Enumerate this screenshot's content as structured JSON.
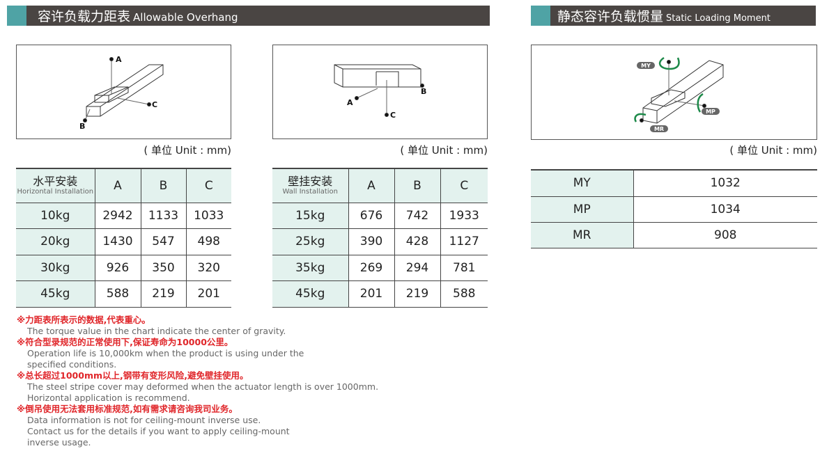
{
  "overhang": {
    "title_zh": "容许负载力距表",
    "title_en": "Allowable Overhang",
    "unit": "( 单位 Unit : mm)",
    "horizontal": {
      "header_zh": "水平安装",
      "header_en": "Horizontal Installation",
      "columns": [
        "A",
        "B",
        "C"
      ],
      "rows": [
        {
          "load": "10kg",
          "values": [
            "2942",
            "1133",
            "1033"
          ]
        },
        {
          "load": "20kg",
          "values": [
            "1430",
            "547",
            "498"
          ]
        },
        {
          "load": "30kg",
          "values": [
            "926",
            "350",
            "320"
          ]
        },
        {
          "load": "45kg",
          "values": [
            "588",
            "219",
            "201"
          ]
        }
      ]
    },
    "wall": {
      "header_zh": "壁挂安装",
      "header_en": "Wall Installation",
      "columns": [
        "A",
        "B",
        "C"
      ],
      "rows": [
        {
          "load": "15kg",
          "values": [
            "676",
            "742",
            "1933"
          ]
        },
        {
          "load": "25kg",
          "values": [
            "390",
            "428",
            "1127"
          ]
        },
        {
          "load": "35kg",
          "values": [
            "269",
            "294",
            "781"
          ]
        },
        {
          "load": "45kg",
          "values": [
            "201",
            "219",
            "588"
          ]
        }
      ]
    },
    "diagram_labels": {
      "a": "A",
      "b": "B",
      "c": "C"
    }
  },
  "static": {
    "title_zh": "静态容许负载惯量",
    "title_en": "Static Loading Moment",
    "unit": "( 单位 Unit : mm)",
    "rows": [
      {
        "label": "MY",
        "value": "1032"
      },
      {
        "label": "MP",
        "value": "1034"
      },
      {
        "label": "MR",
        "value": "908"
      }
    ],
    "diagram_labels": {
      "my": "MY",
      "mp": "MP",
      "mr": "MR"
    },
    "arrow_color": "#1e8a4a"
  },
  "notes": [
    {
      "zh": "※力距表所表示的数据,代表重心。",
      "en": [
        "The torque value in the chart indicate the center of gravity."
      ]
    },
    {
      "zh": "※符合型录规范的正常使用下,保证寿命为10000公里。",
      "en": [
        "Operation life is 10,000km when the product is using under the",
        "specified conditions."
      ]
    },
    {
      "zh": "※总长超过1000mm以上,钢带有变形风险,避免壁挂使用。",
      "en": [
        "The steel stripe cover may deformed when the actuator length is over 1000mm.",
        "Horizontal application is recommend."
      ]
    },
    {
      "zh": "※倒吊使用无法套用标准规范,如有需求请咨询我司业务。",
      "en": [
        "Data information is not for ceiling-mount inverse use.",
        "Contact us for the details if you want to apply ceiling-mount",
        "inverse usage."
      ]
    }
  ]
}
